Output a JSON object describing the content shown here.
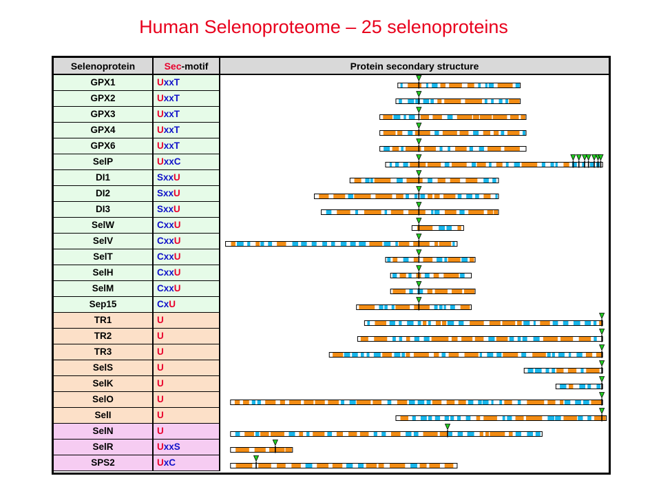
{
  "title": "Human Selenoproteome – 25 selenoproteins",
  "headers": {
    "protein": "Selenoprotein",
    "motif_sec": "Sec",
    "motif_rest": "-motif",
    "structure": "Protein secondary structure"
  },
  "colors": {
    "group1": "#e6fbe8",
    "group2": "#fce0c8",
    "group3": "#f6ccf2",
    "helix": "#f28c14",
    "strand": "#17b5ea",
    "marker": "#22cc22",
    "header": "#d9d9d9",
    "sec": "#e8002c",
    "other": "#1010c8"
  },
  "rows": [
    {
      "name": "GPX1",
      "motif": "UxxT",
      "group": 1,
      "bar": [
        0.46,
        0.78
      ],
      "sec": [
        0.515
      ]
    },
    {
      "name": "GPX2",
      "motif": "UxxT",
      "group": 1,
      "bar": [
        0.455,
        0.78
      ],
      "sec": [
        0.515
      ]
    },
    {
      "name": "GPX3",
      "motif": "UxxT",
      "group": 1,
      "bar": [
        0.413,
        0.795
      ],
      "sec": [
        0.515
      ]
    },
    {
      "name": "GPX4",
      "motif": "UxxT",
      "group": 1,
      "bar": [
        0.413,
        0.795
      ],
      "sec": [
        0.515
      ]
    },
    {
      "name": "GPX6",
      "motif": "UxxT",
      "group": 1,
      "bar": [
        0.413,
        0.795
      ],
      "sec": [
        0.515
      ]
    },
    {
      "name": "SelP",
      "motif": "UxxC",
      "group": 1,
      "bar": [
        0.428,
        0.995
      ],
      "sec": [
        0.515,
        0.918,
        0.933,
        0.948,
        0.958,
        0.973,
        0.983,
        0.99
      ]
    },
    {
      "name": "DI1",
      "motif": "SxxU",
      "group": 1,
      "bar": [
        0.335,
        0.723
      ],
      "sec": [
        0.515
      ]
    },
    {
      "name": "DI2",
      "motif": "SxxU",
      "group": 1,
      "bar": [
        0.242,
        0.723
      ],
      "sec": [
        0.515
      ]
    },
    {
      "name": "DI3",
      "motif": "SxxU",
      "group": 1,
      "bar": [
        0.26,
        0.723
      ],
      "sec": [
        0.515
      ]
    },
    {
      "name": "SelW",
      "motif": "CxxU",
      "group": 1,
      "bar": [
        0.497,
        0.632
      ],
      "sec": [
        0.515
      ]
    },
    {
      "name": "SelV",
      "motif": "CxxU",
      "group": 1,
      "bar": [
        0.01,
        0.615
      ],
      "sec": [
        0.515
      ]
    },
    {
      "name": "SelT",
      "motif": "CxxU",
      "group": 1,
      "bar": [
        0.428,
        0.662
      ],
      "sec": [
        0.515
      ]
    },
    {
      "name": "SelH",
      "motif": "CxxU",
      "group": 1,
      "bar": [
        0.441,
        0.652
      ],
      "sec": [
        0.515
      ]
    },
    {
      "name": "SelM",
      "motif": "CxxU",
      "group": 1,
      "bar": [
        0.441,
        0.662
      ],
      "sec": [
        0.515
      ]
    },
    {
      "name": "Sep15",
      "motif": "CxU",
      "group": 1,
      "bar": [
        0.352,
        0.652
      ],
      "sec": [
        0.515
      ]
    },
    {
      "name": "TR1",
      "motif": "U",
      "group": 2,
      "bar": [
        0.373,
        0.995
      ],
      "sec": [
        0.993
      ]
    },
    {
      "name": "TR2",
      "motif": "U",
      "group": 2,
      "bar": [
        0.355,
        0.995
      ],
      "sec": [
        0.993
      ]
    },
    {
      "name": "TR3",
      "motif": "U",
      "group": 2,
      "bar": [
        0.281,
        0.995
      ],
      "sec": [
        0.993
      ]
    },
    {
      "name": "SelS",
      "motif": "U",
      "group": 2,
      "bar": [
        0.79,
        0.995
      ],
      "sec": [
        0.993
      ]
    },
    {
      "name": "SelK",
      "motif": "U",
      "group": 2,
      "bar": [
        0.873,
        0.995
      ],
      "sec": [
        0.993
      ]
    },
    {
      "name": "SelO",
      "motif": "U",
      "group": 2,
      "bar": [
        0.023,
        0.995
      ],
      "sec": [
        0.993
      ]
    },
    {
      "name": "SelI",
      "motif": "U",
      "group": 2,
      "bar": [
        0.455,
        1.005
      ],
      "sec": [
        0.993
      ]
    },
    {
      "name": "SelN",
      "motif": "U",
      "group": 3,
      "bar": [
        0.023,
        0.837
      ],
      "sec": [
        0.59
      ]
    },
    {
      "name": "SelR",
      "motif": "UxxS",
      "group": 3,
      "bar": [
        0.023,
        0.185
      ],
      "sec": [
        0.14
      ]
    },
    {
      "name": "SPS2",
      "motif": "UxC",
      "group": 3,
      "bar": [
        0.023,
        0.615
      ],
      "sec": [
        0.09
      ]
    }
  ]
}
